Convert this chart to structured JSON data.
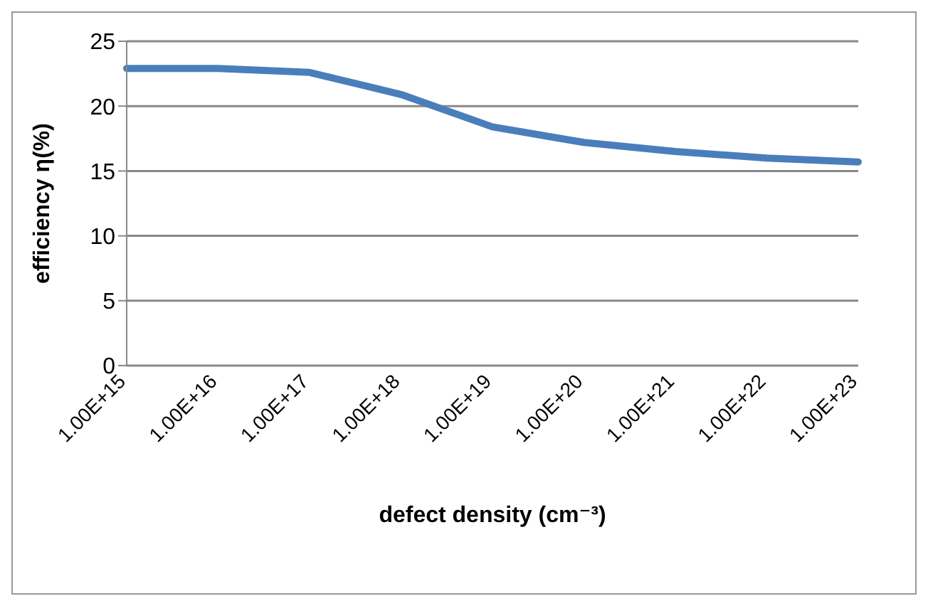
{
  "chart_data": {
    "type": "line",
    "xlabel": "defect density (cm⁻³)",
    "ylabel": "efficiency η(%)",
    "categories": [
      "1.00E+15",
      "1.00E+16",
      "1.00E+17",
      "1.00E+18",
      "1.00E+19",
      "1.00E+20",
      "1.00E+21",
      "1.00E+22",
      "1.00E+23"
    ],
    "series": [
      {
        "color": "#4a7ebb",
        "values": [
          22.9,
          22.9,
          22.6,
          20.9,
          18.4,
          17.2,
          16.5,
          16.0,
          15.7
        ]
      }
    ],
    "ylim": [
      0,
      25
    ],
    "yticks": [
      0,
      5,
      10,
      15,
      20,
      25
    ],
    "grid": "y",
    "legend": false,
    "marker": "none",
    "line_style": "solid"
  }
}
